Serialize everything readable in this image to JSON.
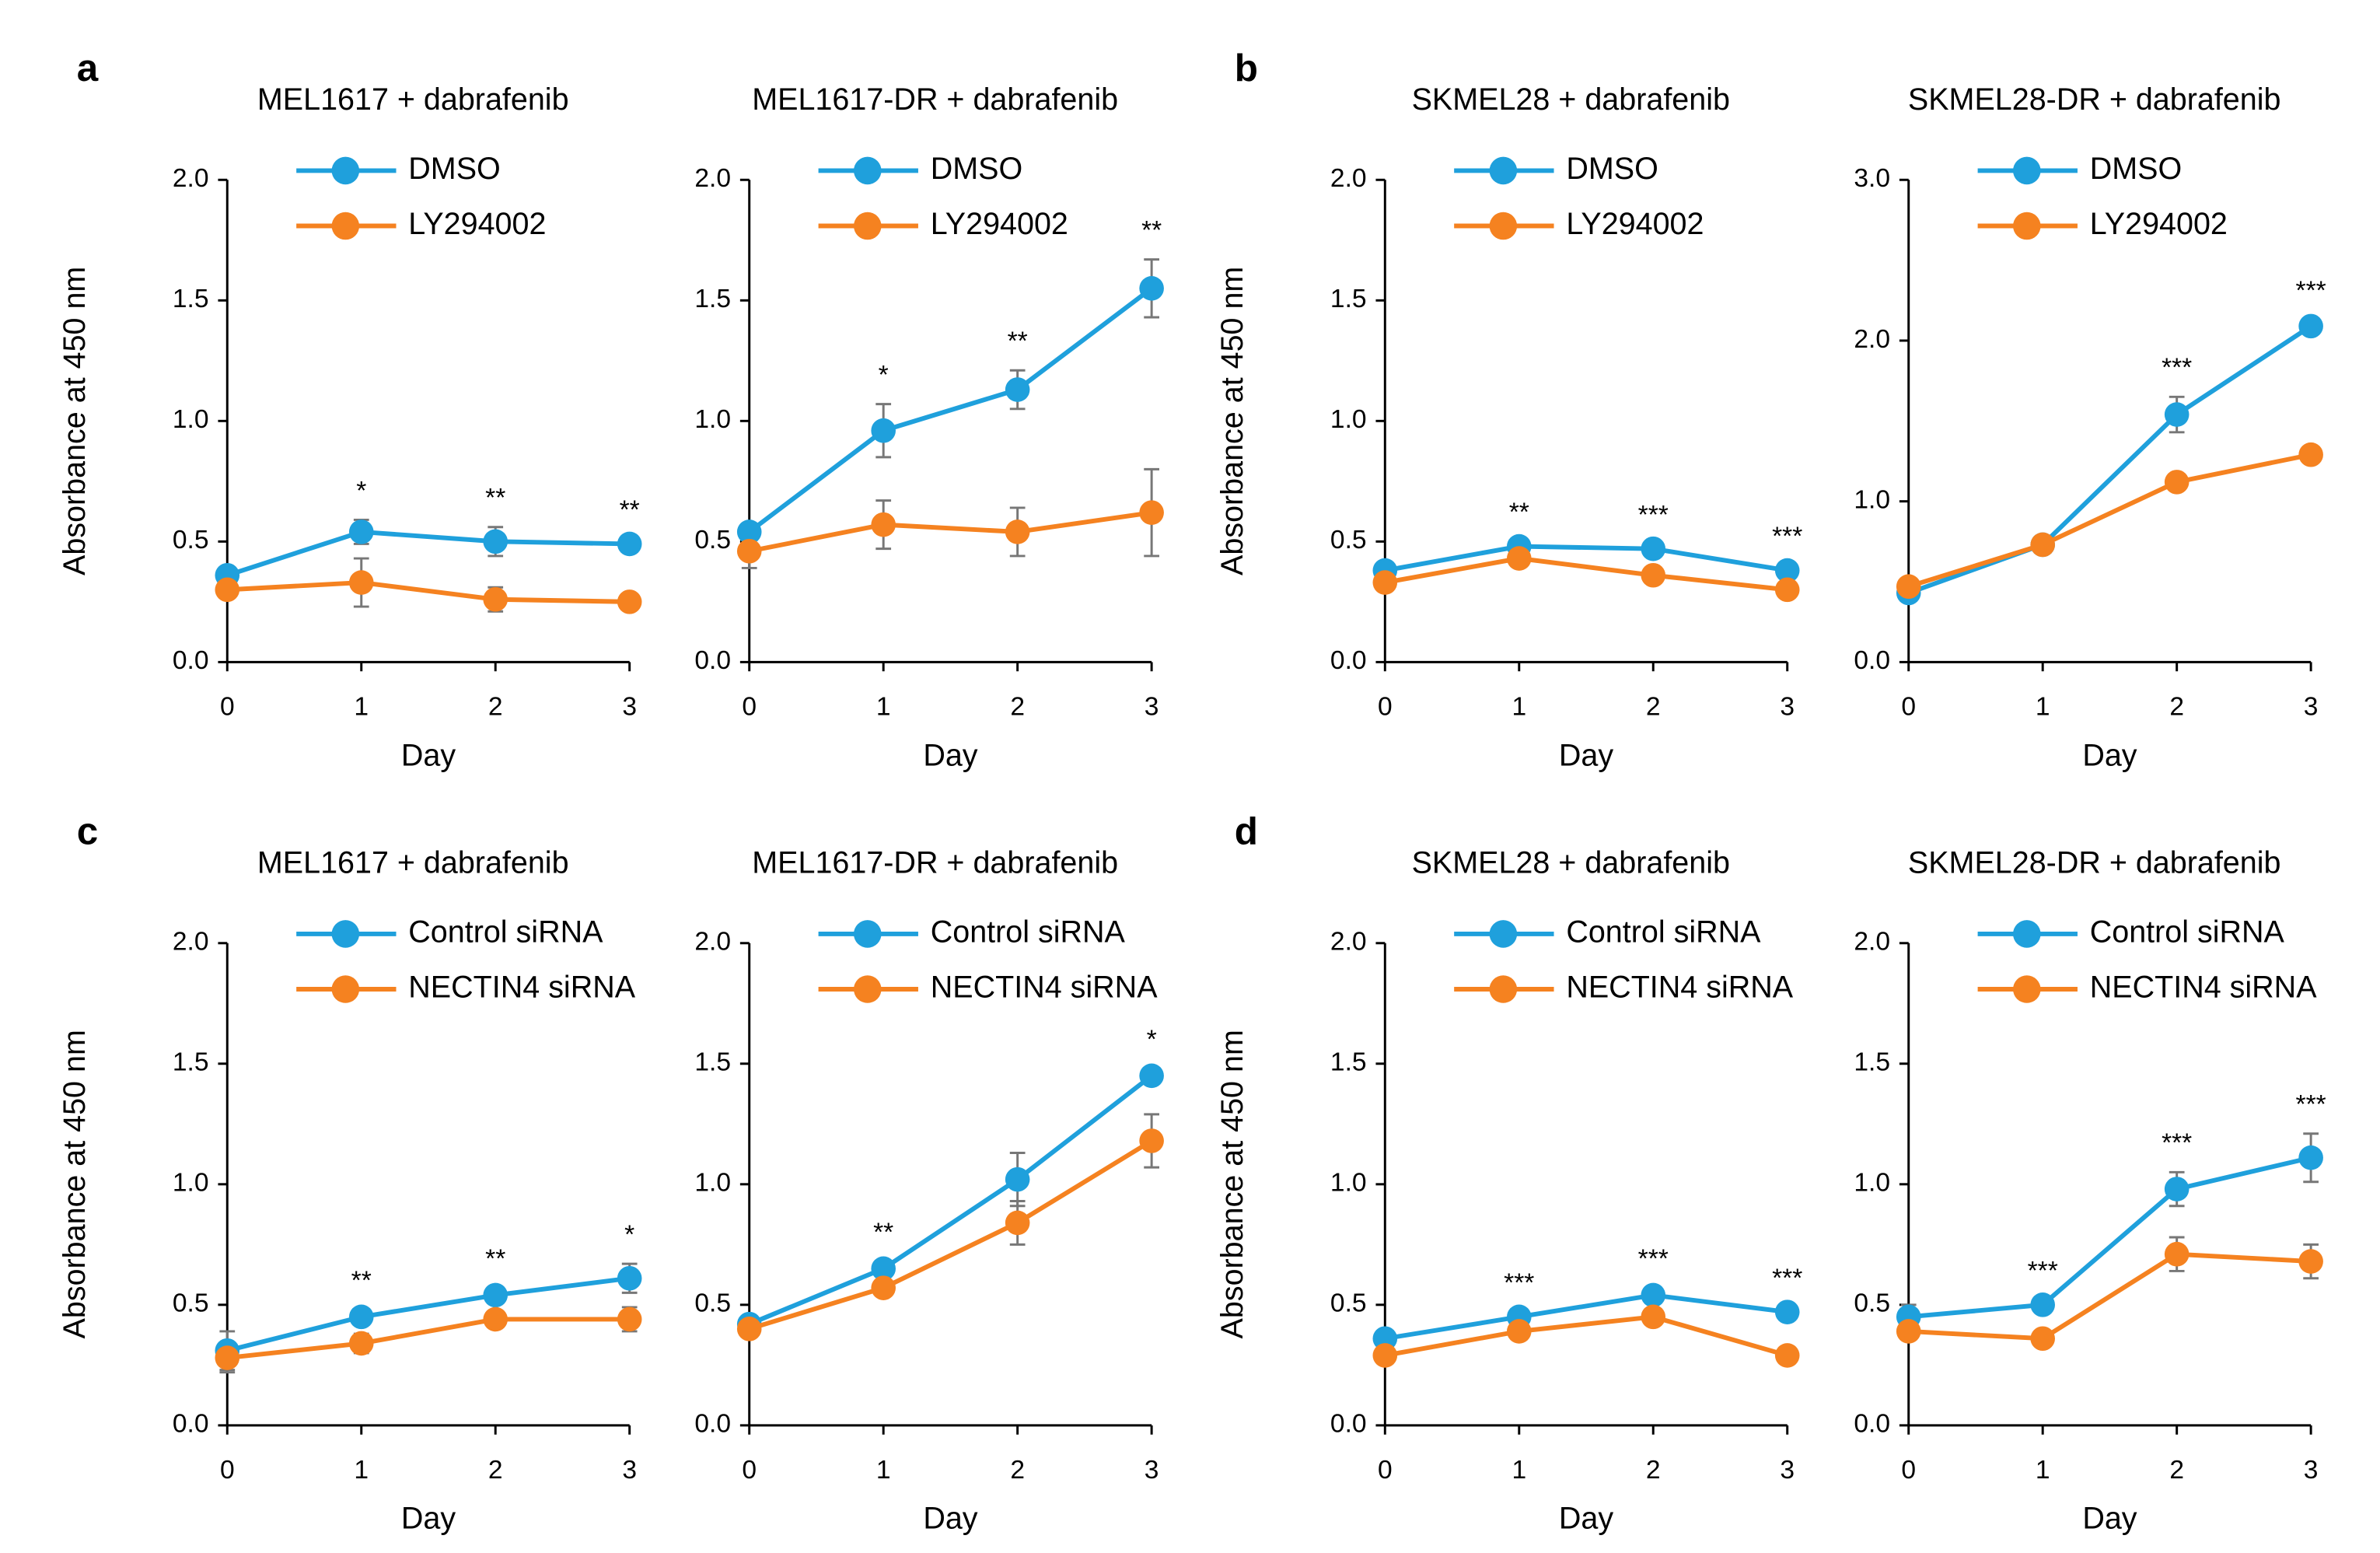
{
  "chart_data": [
    {
      "type": "line",
      "panel_label": "a",
      "title": "MEL1617  + dabrafenib",
      "ylabel": "Absorbance at 450 nm",
      "xlabel": "Day",
      "x": [
        0,
        1,
        2,
        3
      ],
      "xlim": [
        0,
        3
      ],
      "xticks": [
        0,
        1,
        2,
        3
      ],
      "ylim": [
        0,
        2
      ],
      "yticks": [
        {
          "value": 0,
          "label": "0.0"
        },
        {
          "value": 0.5,
          "label": "0.5"
        },
        {
          "value": 1,
          "label": "1.0"
        },
        {
          "value": 1.5,
          "label": "1.5"
        },
        {
          "value": 2,
          "label": "2.0"
        }
      ],
      "series": [
        {
          "name": "DMSO",
          "color": "#1fa0dc",
          "values": [
            0.36,
            0.54,
            0.5,
            0.49
          ],
          "errors": [
            0.02,
            0.05,
            0.06,
            0.02
          ]
        },
        {
          "name": "LY294002",
          "color": "#f58220",
          "values": [
            0.3,
            0.33,
            0.26,
            0.25
          ],
          "errors": [
            0.03,
            0.1,
            0.05,
            0.02
          ]
        }
      ],
      "annotations": [
        null,
        "*",
        "**",
        "**"
      ]
    },
    {
      "type": "line",
      "title": "MEL1617-DR  + dabrafenib",
      "xlabel": "Day",
      "x": [
        0,
        1,
        2,
        3
      ],
      "xlim": [
        0,
        3
      ],
      "xticks": [
        0,
        1,
        2,
        3
      ],
      "ylim": [
        0,
        2
      ],
      "yticks": [
        {
          "value": 0,
          "label": "0.0"
        },
        {
          "value": 0.5,
          "label": "0.5"
        },
        {
          "value": 1,
          "label": "1.0"
        },
        {
          "value": 1.5,
          "label": "1.5"
        },
        {
          "value": 2,
          "label": "2.0"
        }
      ],
      "series": [
        {
          "name": "DMSO",
          "color": "#1fa0dc",
          "values": [
            0.54,
            0.96,
            1.13,
            1.55
          ],
          "errors": [
            0.03,
            0.11,
            0.08,
            0.12
          ]
        },
        {
          "name": "LY294002",
          "color": "#f58220",
          "values": [
            0.46,
            0.57,
            0.54,
            0.62
          ],
          "errors": [
            0.07,
            0.1,
            0.1,
            0.18
          ]
        }
      ],
      "annotations": [
        null,
        "*",
        "**",
        "**"
      ]
    },
    {
      "type": "line",
      "panel_label": "b",
      "title": "SKMEL28  + dabrafenib",
      "ylabel": "Absorbance at 450 nm",
      "xlabel": "Day",
      "x": [
        0,
        1,
        2,
        3
      ],
      "xlim": [
        0,
        3
      ],
      "xticks": [
        0,
        1,
        2,
        3
      ],
      "ylim": [
        0,
        2
      ],
      "yticks": [
        {
          "value": 0,
          "label": "0.0"
        },
        {
          "value": 0.5,
          "label": "0.5"
        },
        {
          "value": 1,
          "label": "1.0"
        },
        {
          "value": 1.5,
          "label": "1.5"
        },
        {
          "value": 2,
          "label": "2.0"
        }
      ],
      "series": [
        {
          "name": "DMSO",
          "color": "#1fa0dc",
          "values": [
            0.38,
            0.48,
            0.47,
            0.38
          ],
          "errors": [
            0.02,
            0.02,
            0.02,
            0.02
          ]
        },
        {
          "name": "LY294002",
          "color": "#f58220",
          "values": [
            0.33,
            0.43,
            0.36,
            0.3
          ],
          "errors": [
            0.02,
            0.02,
            0.02,
            0.02
          ]
        }
      ],
      "annotations": [
        null,
        "**",
        "***",
        "***"
      ]
    },
    {
      "type": "line",
      "title": "SKMEL28-DR  + dabrafenib",
      "xlabel": "Day",
      "x": [
        0,
        1,
        2,
        3
      ],
      "xlim": [
        0,
        3
      ],
      "xticks": [
        0,
        1,
        2,
        3
      ],
      "ylim": [
        0,
        3
      ],
      "yticks": [
        {
          "value": 0,
          "label": "0.0"
        },
        {
          "value": 1,
          "label": "1.0"
        },
        {
          "value": 2,
          "label": "2.0"
        },
        {
          "value": 3,
          "label": "3.0"
        }
      ],
      "series": [
        {
          "name": "DMSO",
          "color": "#1fa0dc",
          "values": [
            0.43,
            0.73,
            1.54,
            2.09
          ],
          "errors": [
            0.03,
            0.05,
            0.11,
            0.04
          ]
        },
        {
          "name": "LY294002",
          "color": "#f58220",
          "values": [
            0.47,
            0.73,
            1.12,
            1.29
          ],
          "errors": [
            0.03,
            0.03,
            0.03,
            0.03
          ]
        }
      ],
      "annotations": [
        null,
        null,
        "***",
        "***"
      ]
    },
    {
      "type": "line",
      "panel_label": "c",
      "title": "MEL1617  + dabrafenib",
      "ylabel": "Absorbance at 450 nm",
      "xlabel": "Day",
      "x": [
        0,
        1,
        2,
        3
      ],
      "xlim": [
        0,
        3
      ],
      "xticks": [
        0,
        1,
        2,
        3
      ],
      "ylim": [
        0,
        2
      ],
      "yticks": [
        {
          "value": 0,
          "label": "0.0"
        },
        {
          "value": 0.5,
          "label": "0.5"
        },
        {
          "value": 1,
          "label": "1.0"
        },
        {
          "value": 1.5,
          "label": "1.5"
        },
        {
          "value": 2,
          "label": "2.0"
        }
      ],
      "series": [
        {
          "name": "Control siRNA",
          "color": "#1fa0dc",
          "values": [
            0.31,
            0.45,
            0.54,
            0.61
          ],
          "errors": [
            0.08,
            0.03,
            0.03,
            0.06
          ]
        },
        {
          "name": "NECTIN4 siRNA",
          "color": "#f58220",
          "values": [
            0.28,
            0.34,
            0.44,
            0.44
          ],
          "errors": [
            0.06,
            0.04,
            0.03,
            0.05
          ]
        }
      ],
      "annotations": [
        null,
        "**",
        "**",
        "*"
      ]
    },
    {
      "type": "line",
      "title": "MEL1617-DR  + dabrafenib",
      "xlabel": "Day",
      "x": [
        0,
        1,
        2,
        3
      ],
      "xlim": [
        0,
        3
      ],
      "xticks": [
        0,
        1,
        2,
        3
      ],
      "ylim": [
        0,
        2
      ],
      "yticks": [
        {
          "value": 0,
          "label": "0.0"
        },
        {
          "value": 0.5,
          "label": "0.5"
        },
        {
          "value": 1,
          "label": "1.0"
        },
        {
          "value": 1.5,
          "label": "1.5"
        },
        {
          "value": 2,
          "label": "2.0"
        }
      ],
      "series": [
        {
          "name": "Control siRNA",
          "color": "#1fa0dc",
          "values": [
            0.42,
            0.65,
            1.02,
            1.45
          ],
          "errors": [
            0.02,
            0.03,
            0.11,
            0.03
          ]
        },
        {
          "name": "NECTIN4 siRNA",
          "color": "#f58220",
          "values": [
            0.4,
            0.57,
            0.84,
            1.18
          ],
          "errors": [
            0.02,
            0.02,
            0.09,
            0.11
          ]
        }
      ],
      "annotations": [
        null,
        "**",
        null,
        "*"
      ]
    },
    {
      "type": "line",
      "panel_label": "d",
      "title": "SKMEL28  + dabrafenib",
      "ylabel": "Absorbance at 450 nm",
      "xlabel": "Day",
      "x": [
        0,
        1,
        2,
        3
      ],
      "xlim": [
        0,
        3
      ],
      "xticks": [
        0,
        1,
        2,
        3
      ],
      "ylim": [
        0,
        2
      ],
      "yticks": [
        {
          "value": 0,
          "label": "0.0"
        },
        {
          "value": 0.5,
          "label": "0.5"
        },
        {
          "value": 1,
          "label": "1.0"
        },
        {
          "value": 1.5,
          "label": "1.5"
        },
        {
          "value": 2,
          "label": "2.0"
        }
      ],
      "series": [
        {
          "name": "Control siRNA",
          "color": "#1fa0dc",
          "values": [
            0.36,
            0.45,
            0.54,
            0.47
          ],
          "errors": [
            0.02,
            0.02,
            0.03,
            0.02
          ]
        },
        {
          "name": "NECTIN4 siRNA",
          "color": "#f58220",
          "values": [
            0.29,
            0.39,
            0.45,
            0.29
          ],
          "errors": [
            0.02,
            0.02,
            0.02,
            0.02
          ]
        }
      ],
      "annotations": [
        null,
        "***",
        "***",
        "***"
      ]
    },
    {
      "type": "line",
      "title": "SKMEL28-DR  + dabrafenib",
      "xlabel": "Day",
      "x": [
        0,
        1,
        2,
        3
      ],
      "xlim": [
        0,
        3
      ],
      "xticks": [
        0,
        1,
        2,
        3
      ],
      "ylim": [
        0,
        2
      ],
      "yticks": [
        {
          "value": 0,
          "label": "0.0"
        },
        {
          "value": 0.5,
          "label": "0.5"
        },
        {
          "value": 1,
          "label": "1.0"
        },
        {
          "value": 1.5,
          "label": "1.5"
        },
        {
          "value": 2,
          "label": "2.0"
        }
      ],
      "series": [
        {
          "name": "Control siRNA",
          "color": "#1fa0dc",
          "values": [
            0.45,
            0.5,
            0.98,
            1.11
          ],
          "errors": [
            0.05,
            0.02,
            0.07,
            0.1
          ]
        },
        {
          "name": "NECTIN4 siRNA",
          "color": "#f58220",
          "values": [
            0.39,
            0.36,
            0.71,
            0.68
          ],
          "errors": [
            0.03,
            0.02,
            0.07,
            0.07
          ]
        }
      ],
      "annotations": [
        null,
        "***",
        "***",
        "***"
      ]
    }
  ]
}
